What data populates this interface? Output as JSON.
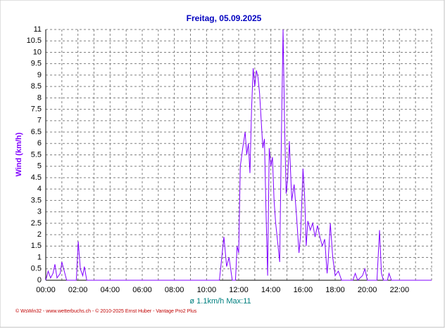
{
  "chart_data": {
    "type": "line",
    "title": "Freitag, 05.09.2025",
    "y_label": "Wind  (km/h)",
    "summary": "ø 1.1km/h  Max:11",
    "footer": "© WsWin32 - www.wetterbuchs.ch - © 2010-2025 Ernst Huber - Vantage Pro2 Plus",
    "xlim": [
      0,
      24
    ],
    "ylim": [
      0,
      11
    ],
    "xticks": [
      {
        "value": 0,
        "label": "00:00"
      },
      {
        "value": 2,
        "label": "02:00"
      },
      {
        "value": 4,
        "label": "04:00"
      },
      {
        "value": 6,
        "label": "06:00"
      },
      {
        "value": 8,
        "label": "08:00"
      },
      {
        "value": 10,
        "label": "10:00"
      },
      {
        "value": 12,
        "label": "12:00"
      },
      {
        "value": 14,
        "label": "14:00"
      },
      {
        "value": 16,
        "label": "16:00"
      },
      {
        "value": 18,
        "label": "18:00"
      },
      {
        "value": 20,
        "label": "20:00"
      },
      {
        "value": 22,
        "label": "22:00"
      }
    ],
    "x_minor_ticks": [
      1,
      3,
      5,
      7,
      9,
      11,
      13,
      15,
      17,
      19,
      21,
      23,
      24
    ],
    "yticks": [
      0,
      0.5,
      1,
      1.5,
      2,
      2.5,
      3,
      3.5,
      4,
      4.5,
      5,
      5.5,
      6,
      6.5,
      7,
      7.5,
      8,
      8.5,
      9,
      9.5,
      10,
      10.5,
      11
    ],
    "grid": true,
    "series": [
      {
        "name": "Wind",
        "color": "#8000ff",
        "x": [
          0,
          0.15,
          0.3,
          0.45,
          0.57,
          0.7,
          0.9,
          1.0,
          1.15,
          1.3,
          1.9,
          2.02,
          2.15,
          2.3,
          2.4,
          2.55,
          10.8,
          11.08,
          11.25,
          11.4,
          11.6,
          11.8,
          11.9,
          12.0,
          12.1,
          12.25,
          12.4,
          12.5,
          12.6,
          12.7,
          12.8,
          12.9,
          13.0,
          13.1,
          13.2,
          13.3,
          13.4,
          13.5,
          13.6,
          13.7,
          13.8,
          13.9,
          14.0,
          14.1,
          14.2,
          14.3,
          14.45,
          14.55,
          14.65,
          14.76,
          14.85,
          14.95,
          15.05,
          15.15,
          15.3,
          15.45,
          15.6,
          15.75,
          15.85,
          16.0,
          16.1,
          16.2,
          16.3,
          16.45,
          16.6,
          16.75,
          16.9,
          17.05,
          17.2,
          17.35,
          17.5,
          17.56,
          17.7,
          17.85,
          18.0,
          18.2,
          18.4,
          19.1,
          19.25,
          19.4,
          19.7,
          19.85,
          20.0,
          20.6,
          20.76,
          20.88,
          21.0,
          21.25,
          21.35,
          21.5,
          24
        ],
        "values": [
          0,
          0.4,
          0.1,
          0.3,
          0.7,
          0.1,
          0.3,
          0.8,
          0.4,
          0,
          0,
          1.7,
          0.5,
          0.2,
          0.6,
          0,
          0,
          1.9,
          0.6,
          1.0,
          0,
          0,
          1.5,
          1.2,
          5.0,
          5.8,
          6.5,
          5.5,
          6.0,
          4.7,
          7.5,
          9.3,
          8.5,
          9.2,
          8.9,
          8.2,
          7.0,
          5.8,
          6.2,
          3.0,
          0.2,
          5.8,
          5.0,
          5.4,
          3.5,
          2.5,
          1.5,
          0.8,
          6.0,
          11,
          7.0,
          3.8,
          4.5,
          6.1,
          3.5,
          4.2,
          2.8,
          1.2,
          2.0,
          4.9,
          3.7,
          1.5,
          2.6,
          2.2,
          2.5,
          1.9,
          2.4,
          1.9,
          1.5,
          1.8,
          0.3,
          0.8,
          2.5,
          1.0,
          0.2,
          0.4,
          0,
          0,
          0.3,
          0,
          0.2,
          0.5,
          0,
          0,
          2.2,
          0.3,
          0,
          0,
          0.3,
          0,
          0
        ]
      }
    ]
  }
}
